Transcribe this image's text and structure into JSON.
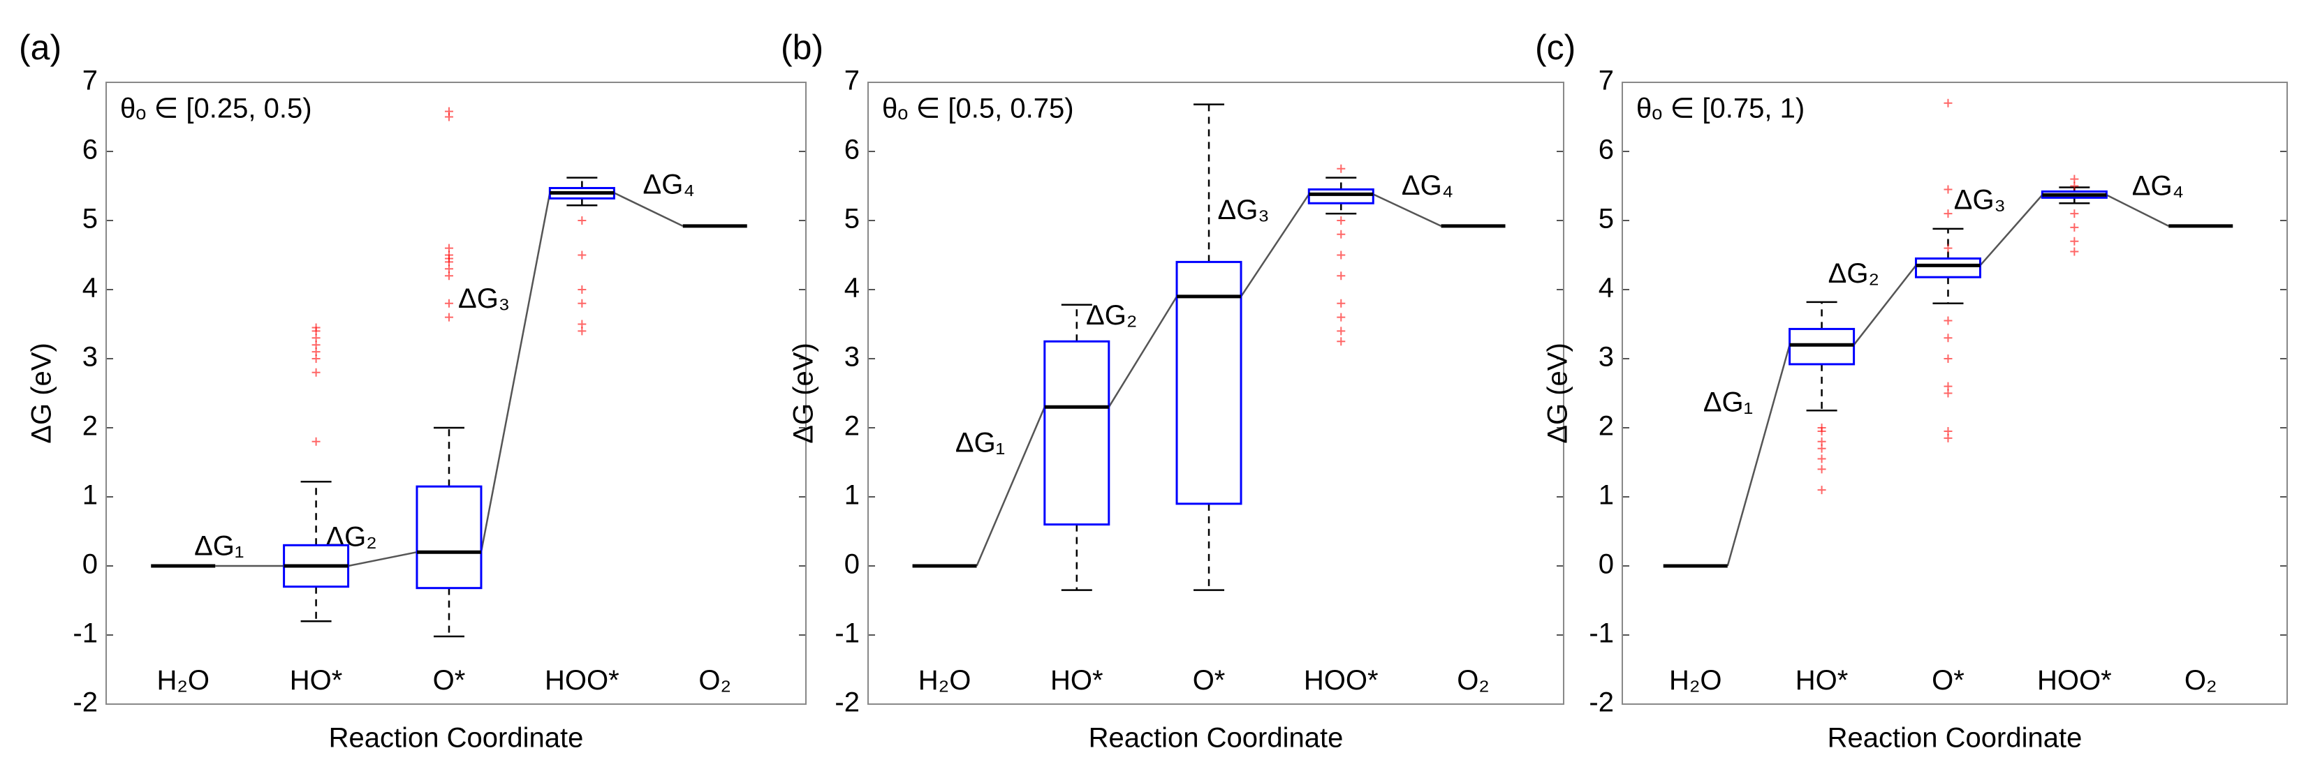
{
  "chart_data": [
    {
      "type": "box",
      "panel_label": "(a)",
      "annotation": "θₒ ∈ [0.25, 0.5)",
      "xlabel": "Reaction Coordinate",
      "ylabel": "ΔG (eV)",
      "categories": [
        "H₂O",
        "HO*",
        "O*",
        "HOO*",
        "O₂"
      ],
      "values": [
        0,
        0.0,
        0.2,
        5.4,
        4.92
      ],
      "boxes": [
        null,
        {
          "q1": -0.3,
          "q3": 0.3,
          "whislo": -0.8,
          "whishi": 1.22,
          "outliers": [
            1.8,
            2.8,
            3.0,
            3.1,
            3.2,
            3.3,
            3.4,
            3.45
          ]
        },
        {
          "q1": -0.32,
          "q3": 1.15,
          "whislo": -1.02,
          "whishi": 2.0,
          "outliers": [
            3.6,
            3.8,
            4.2,
            4.3,
            4.4,
            4.45,
            4.5,
            4.6,
            6.5,
            6.58
          ]
        },
        {
          "q1": 5.32,
          "q3": 5.47,
          "whislo": 5.22,
          "whishi": 5.62,
          "outliers": [
            3.4,
            3.5,
            3.8,
            4.0,
            4.5,
            5.0
          ]
        },
        null
      ],
      "step_labels": [
        "ΔG₁",
        "ΔG₂",
        "ΔG₃",
        "ΔG₄"
      ],
      "box_color": "#0000ff",
      "outlier_color": "#ff0000",
      "ylim": [
        -2,
        7
      ],
      "yticks": [
        -2,
        -1,
        0,
        1,
        2,
        3,
        4,
        5,
        6,
        7
      ]
    },
    {
      "type": "box",
      "panel_label": "(b)",
      "annotation": "θₒ ∈ [0.5, 0.75)",
      "xlabel": "Reaction Coordinate",
      "ylabel": "ΔG (eV)",
      "categories": [
        "H₂O",
        "HO*",
        "O*",
        "HOO*",
        "O₂"
      ],
      "values": [
        0,
        2.3,
        3.9,
        5.38,
        4.92
      ],
      "boxes": [
        null,
        {
          "q1": 0.6,
          "q3": 3.25,
          "whislo": -0.35,
          "whishi": 3.78,
          "outliers": []
        },
        {
          "q1": 0.9,
          "q3": 4.4,
          "whislo": -0.35,
          "whishi": 6.68,
          "outliers": []
        },
        {
          "q1": 5.25,
          "q3": 5.45,
          "whislo": 5.1,
          "whishi": 5.62,
          "outliers": [
            3.25,
            3.4,
            3.6,
            3.8,
            4.2,
            4.5,
            4.8,
            5.0,
            5.75
          ]
        },
        null
      ],
      "step_labels": [
        "ΔG₁",
        "ΔG₂",
        "ΔG₃",
        "ΔG₄"
      ],
      "box_color": "#0000ff",
      "outlier_color": "#ff0000",
      "ylim": [
        -2,
        7
      ],
      "yticks": [
        -2,
        -1,
        0,
        1,
        2,
        3,
        4,
        5,
        6,
        7
      ]
    },
    {
      "type": "box",
      "panel_label": "(c)",
      "annotation": "θₒ ∈ [0.75, 1)",
      "xlabel": "Reaction Coordinate",
      "ylabel": "ΔG (eV)",
      "categories": [
        "H₂O",
        "HO*",
        "O*",
        "HOO*",
        "O₂"
      ],
      "values": [
        0,
        3.2,
        4.35,
        5.37,
        4.92
      ],
      "boxes": [
        null,
        {
          "q1": 2.92,
          "q3": 3.43,
          "whislo": 2.25,
          "whishi": 3.82,
          "outliers": [
            1.1,
            1.4,
            1.55,
            1.7,
            1.8,
            1.95,
            2.0
          ]
        },
        {
          "q1": 4.18,
          "q3": 4.45,
          "whislo": 3.8,
          "whishi": 4.88,
          "outliers": [
            1.85,
            1.95,
            2.5,
            2.6,
            3.0,
            3.3,
            3.55,
            4.6,
            5.1,
            5.45,
            6.7
          ]
        },
        {
          "q1": 5.33,
          "q3": 5.42,
          "whislo": 5.25,
          "whishi": 5.48,
          "outliers": [
            4.55,
            4.7,
            4.9,
            5.1,
            5.5,
            5.6
          ]
        },
        null
      ],
      "step_labels": [
        "ΔG₁",
        "ΔG₂",
        "ΔG₃",
        "ΔG₄"
      ],
      "box_color": "#0000ff",
      "outlier_color": "#ff0000",
      "ylim": [
        -2,
        7
      ],
      "yticks": [
        -2,
        -1,
        0,
        1,
        2,
        3,
        4,
        5,
        6,
        7
      ]
    }
  ]
}
